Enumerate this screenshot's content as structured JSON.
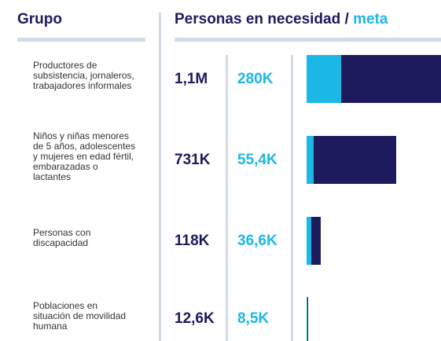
{
  "chart_data": {
    "type": "bar",
    "orientation": "horizontal",
    "group_header": "Grupo",
    "title": "Personas en necesidad",
    "title_separator": "/",
    "title_accent": "meta",
    "categories": [
      [
        "Productores de",
        "subsistencia, jornaleros,",
        "trabajadores informales"
      ],
      [
        "Niños y niñas menores",
        "de 5 años, adolescentes",
        "y mujeres en edad fértil,",
        "embarazadas o",
        "lactantes"
      ],
      [
        "Personas con",
        "discapacidad"
      ],
      [
        "Poblaciones en",
        "situación de movilidad",
        "humana"
      ]
    ],
    "series": [
      {
        "name": "Personas en necesidad",
        "color": "#1d1a5e",
        "values": [
          1100000,
          731000,
          118000,
          12600
        ],
        "value_labels": [
          "1,1M",
          "731K",
          "118K",
          "12,6K"
        ]
      },
      {
        "name": "meta",
        "color": "#1bb8e6",
        "values": [
          280000,
          55400,
          36600,
          8500
        ],
        "value_labels": [
          "280K",
          "55,4K",
          "36,6K",
          "8,5K"
        ]
      }
    ]
  }
}
